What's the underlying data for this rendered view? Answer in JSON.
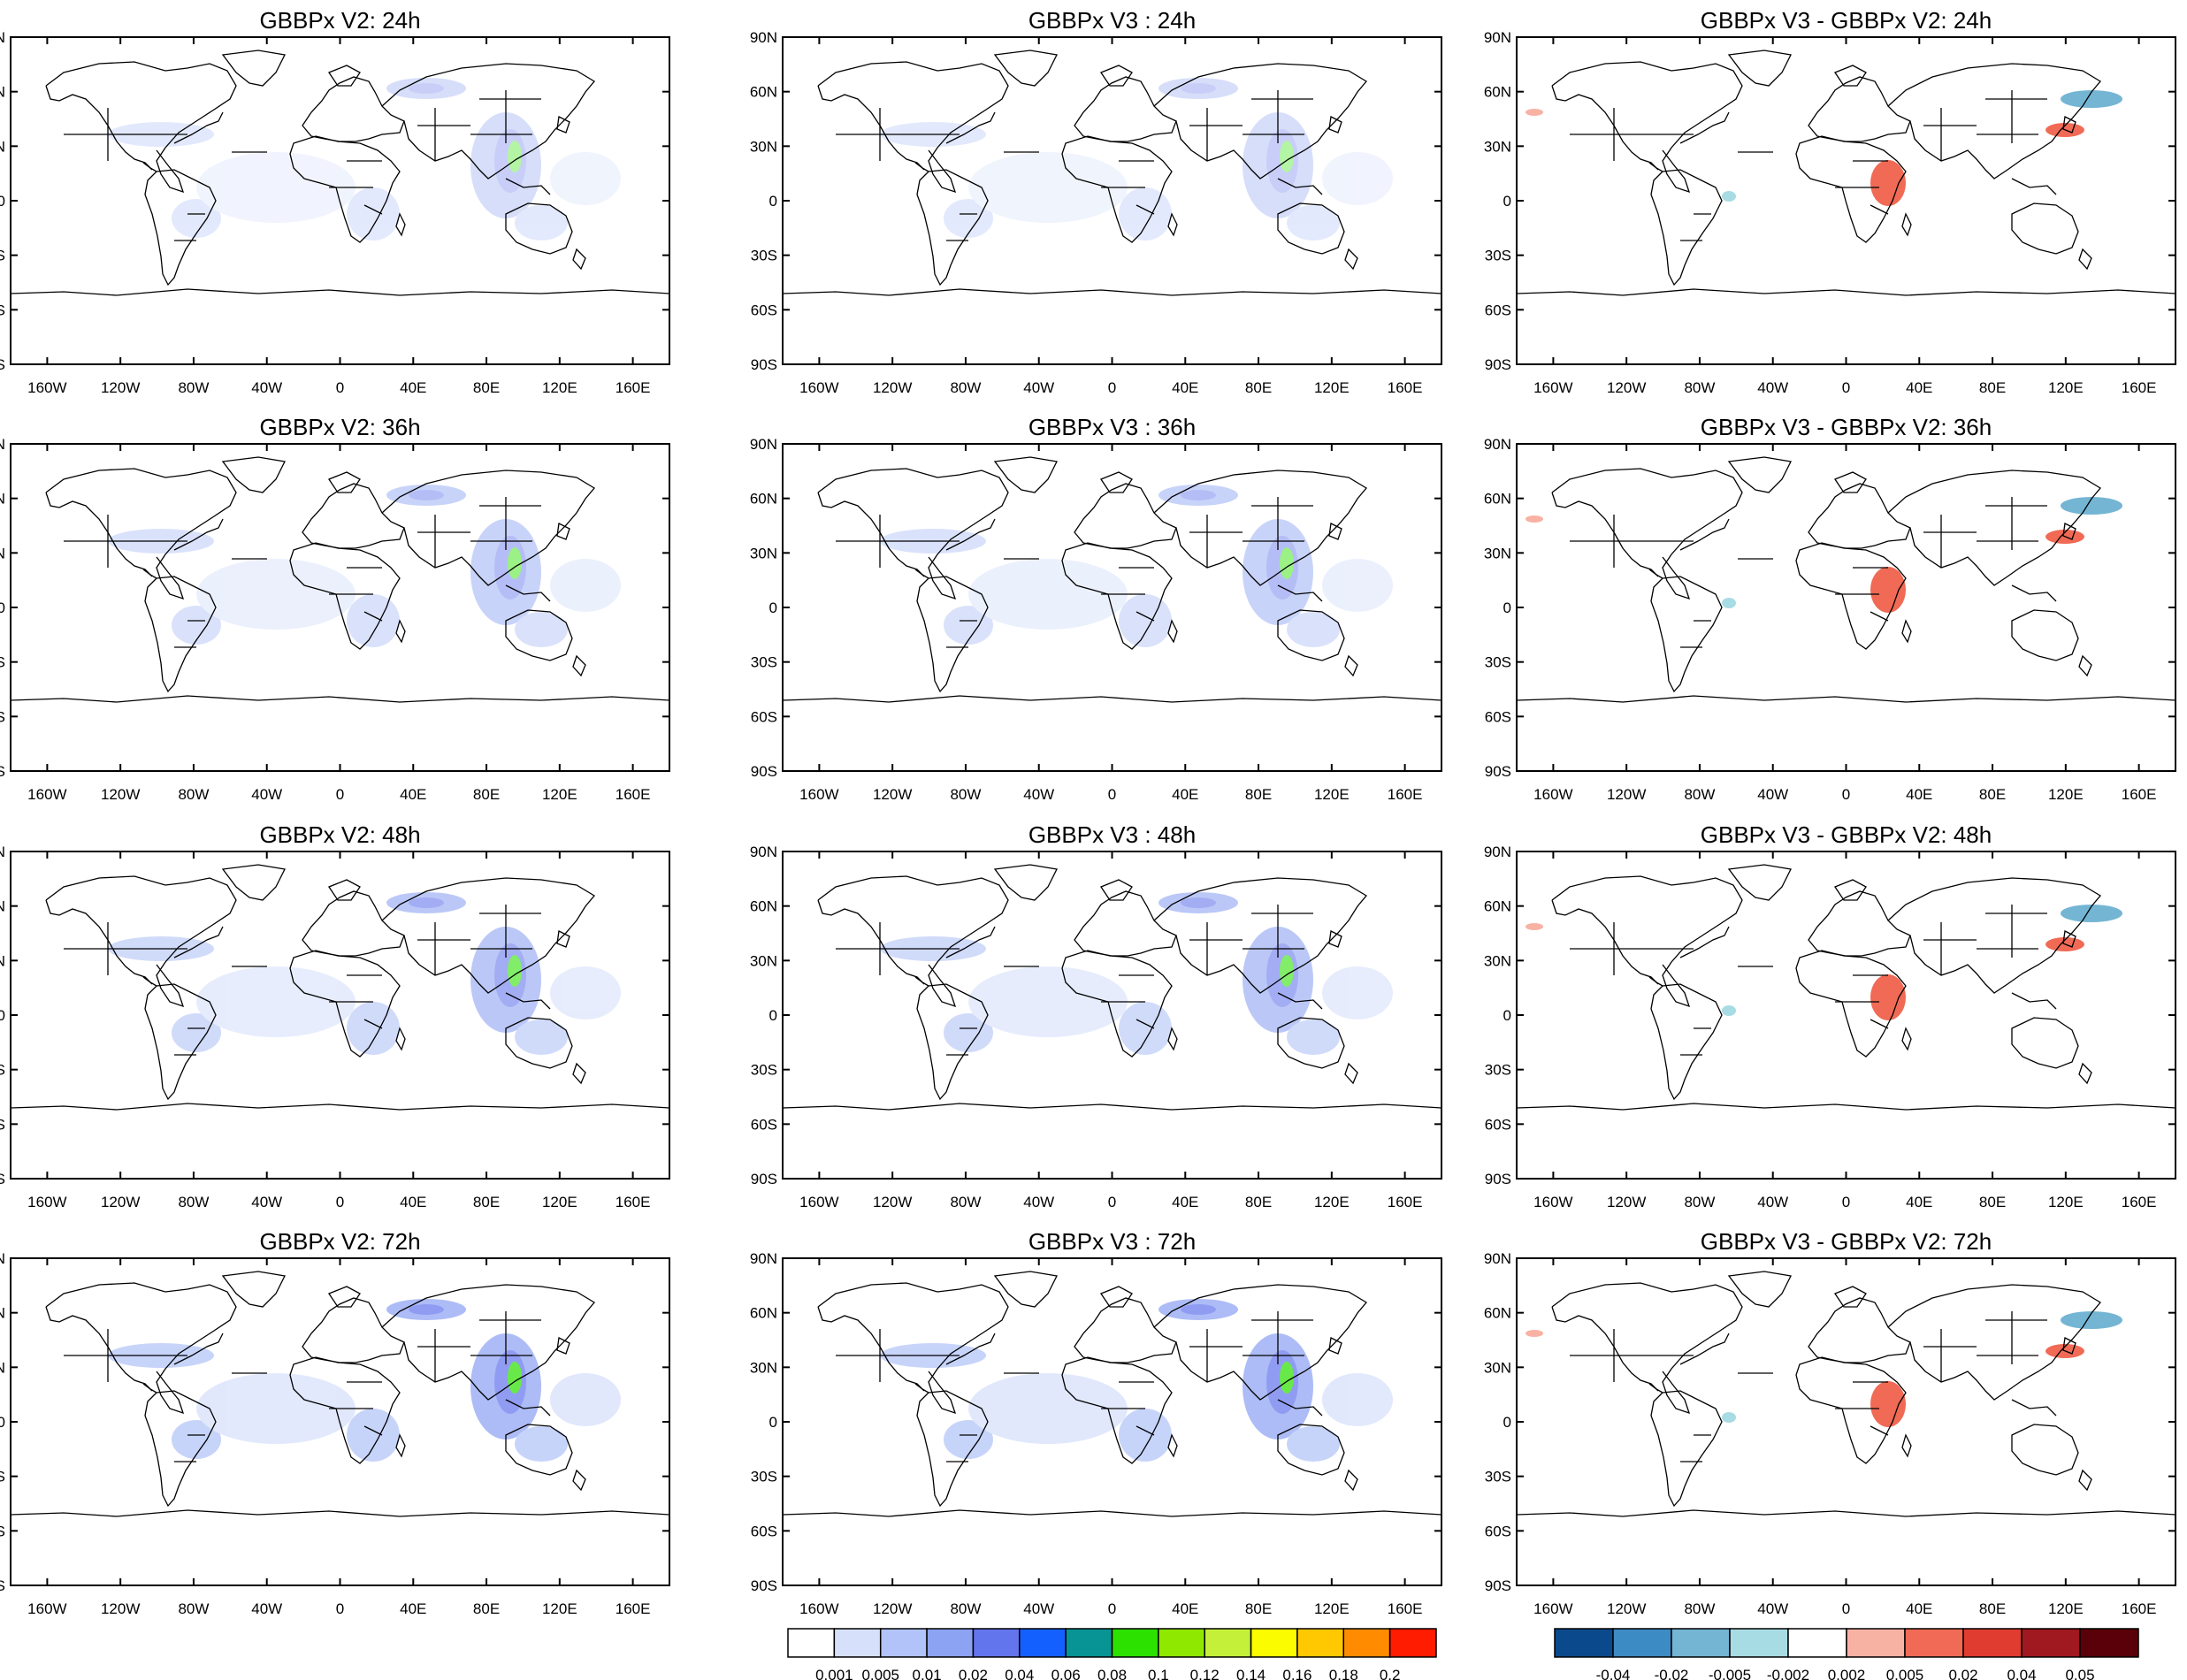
{
  "colors": {
    "land_line": "#000000",
    "abs_scale": [
      "#ffffff",
      "#d6e0fb",
      "#b1c3f8",
      "#8ca2f3",
      "#6375ec",
      "#1460ff",
      "#089494",
      "#2ce100",
      "#8fe800",
      "#c4f03a",
      "#fcfc00",
      "#ffc800",
      "#ff8c00",
      "#ff1c00"
    ],
    "diff_scale": [
      "#0a4a8c",
      "#3d8bc4",
      "#74b5d4",
      "#a8dce4",
      "#ffffff",
      "#f8b2a4",
      "#f06a55",
      "#e03c30",
      "#a01820",
      "#5a0008"
    ]
  },
  "icons": [
    "coastline-map-icon"
  ],
  "axes": {
    "lat_labels": [
      "90N",
      "60N",
      "30N",
      "0",
      "30S",
      "60S",
      "90S"
    ],
    "lon_labels": [
      "160W",
      "120W",
      "80W",
      "40W",
      "0",
      "40E",
      "80E",
      "120E",
      "160E"
    ]
  },
  "panels": [
    {
      "title": "GBBPx V2: 24h"
    },
    {
      "title": "GBBPx V3 : 24h"
    },
    {
      "title": "GBBPx V3 - GBBPx V2: 24h"
    },
    {
      "title": "GBBPx V2: 36h"
    },
    {
      "title": "GBBPx V3 : 36h"
    },
    {
      "title": "GBBPx V3 - GBBPx V2: 36h"
    },
    {
      "title": "GBBPx V2: 48h"
    },
    {
      "title": "GBBPx V3 : 48h"
    },
    {
      "title": "GBBPx V3 - GBBPx V2: 48h"
    },
    {
      "title": "GBBPx V2: 72h"
    },
    {
      "title": "GBBPx V3 : 72h"
    },
    {
      "title": "GBBPx V3 - GBBPx V2: 72h"
    }
  ],
  "colorbars": {
    "abs": {
      "labels": [
        "0.001",
        "0.005",
        "0.01",
        "0.02",
        "0.04",
        "0.06",
        "0.08",
        "0.1",
        "0.12",
        "0.14",
        "0.16",
        "0.18",
        "0.2"
      ]
    },
    "diff": {
      "labels": [
        "-0.04",
        "-0.02",
        "-0.005",
        "-0.002",
        "0.002",
        "0.005",
        "0.02",
        "0.04",
        "0.05"
      ]
    }
  }
}
